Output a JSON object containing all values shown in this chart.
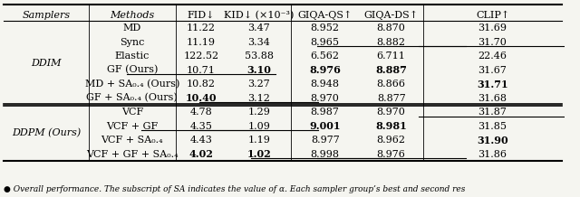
{
  "caption": "Overall performance. The subscript of SA indicates the value of α. Each sampler group’s best and second res",
  "col_headers": [
    "Samplers",
    "Methods",
    "FID↓",
    "KID↓ (×10⁻³)",
    "GIQA-QS↑",
    "GIQA-DS↑",
    "CLIP↑"
  ],
  "rows": [
    {
      "sampler": "DDIM",
      "method": "MD",
      "fid": "11.22",
      "kid": "3.47",
      "giqa_qs": "8.952",
      "giqa_ds": "8.870",
      "clip": "31.69",
      "bold": [],
      "underline": []
    },
    {
      "sampler": "",
      "method": "Sync",
      "fid": "11.19",
      "kid": "3.34",
      "giqa_qs": "8.965",
      "giqa_ds": "8.882",
      "clip": "31.70",
      "bold": [],
      "underline": [
        "giqa_ds",
        "clip"
      ]
    },
    {
      "sampler": "",
      "method": "Elastic",
      "fid": "122.52",
      "kid": "53.88",
      "giqa_qs": "6.562",
      "giqa_ds": "6.711",
      "clip": "22.46",
      "bold": [],
      "underline": []
    },
    {
      "sampler": "",
      "method": "GF (Ours)",
      "fid": "10.71",
      "kid": "3.10",
      "giqa_qs": "8.976",
      "giqa_ds": "8.887",
      "clip": "31.67",
      "bold": [
        "kid",
        "giqa_qs",
        "giqa_ds"
      ],
      "underline": [
        "fid"
      ]
    },
    {
      "sampler": "",
      "method": "MD + SA₀.₄ (Ours)",
      "fid": "10.82",
      "kid": "3.27",
      "giqa_qs": "8.948",
      "giqa_ds": "8.866",
      "clip": "31.71",
      "bold": [
        "clip"
      ],
      "underline": []
    },
    {
      "sampler": "",
      "method": "GF + SA₀.₄ (Ours)",
      "fid": "10.40",
      "kid": "3.12",
      "giqa_qs": "8.970",
      "giqa_ds": "8.877",
      "clip": "31.68",
      "bold": [
        "fid"
      ],
      "underline": [
        "kid"
      ]
    },
    {
      "sampler": "DDPM (Ours)",
      "method": "VCF",
      "fid": "4.78",
      "kid": "1.29",
      "giqa_qs": "8.987",
      "giqa_ds": "8.970",
      "clip": "31.87",
      "bold": [],
      "underline": [
        "clip"
      ]
    },
    {
      "sampler": "",
      "method": "VCF + GF",
      "fid": "4.35",
      "kid": "1.09",
      "giqa_qs": "9.001",
      "giqa_ds": "8.981",
      "clip": "31.85",
      "bold": [
        "giqa_qs",
        "giqa_ds"
      ],
      "underline": [
        "fid",
        "kid"
      ]
    },
    {
      "sampler": "",
      "method": "VCF + SA₀.₄",
      "fid": "4.43",
      "kid": "1.19",
      "giqa_qs": "8.977",
      "giqa_ds": "8.962",
      "clip": "31.90",
      "bold": [
        "clip"
      ],
      "underline": []
    },
    {
      "sampler": "",
      "method": "VCF + GF + SA₀.₄",
      "fid": "4.02",
      "kid": "1.02",
      "giqa_qs": "8.998",
      "giqa_ds": "8.976",
      "clip": "31.86",
      "bold": [
        "fid",
        "kid"
      ],
      "underline": [
        "giqa_qs",
        "giqa_ds"
      ]
    }
  ],
  "ddim_rows": [
    0,
    1,
    2,
    3,
    4,
    5
  ],
  "ddpm_rows": [
    6,
    7,
    8,
    9
  ],
  "bg_color": "#f5f5f0",
  "font_size": 8.0,
  "caption_text": "● Overall performance. The subscript of SA indicates the value of α. Each sampler group’s best and second res"
}
